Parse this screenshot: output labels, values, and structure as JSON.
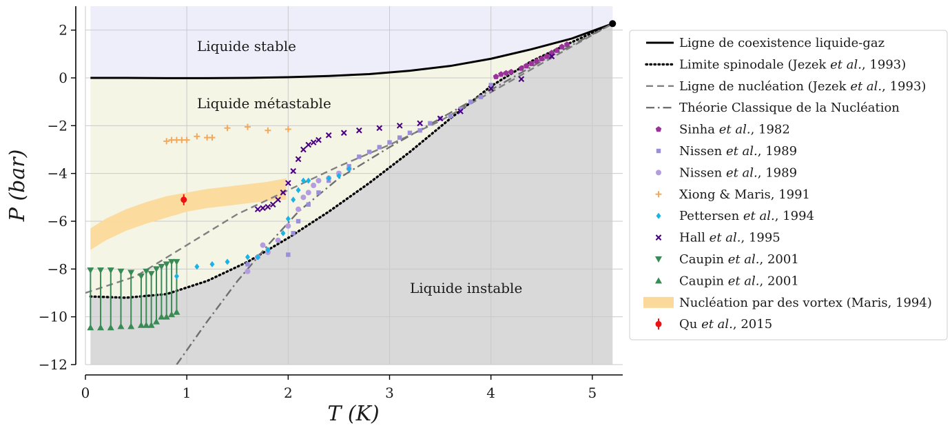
{
  "chart_data": {
    "type": "scatter",
    "xlabel": "T (K)",
    "ylabel": "P (bar)",
    "xlim": [
      0,
      5.3
    ],
    "ylim": [
      -12,
      3
    ],
    "xticks": [
      "0",
      "1",
      "2",
      "3",
      "4",
      "5"
    ],
    "yticks": [
      "2",
      "0",
      "−2",
      "−4",
      "−6",
      "−8",
      "−10",
      "−12"
    ],
    "grid": true,
    "legend_position": "right",
    "region_labels": {
      "stable": "Liquide stable",
      "metastable": "Liquide métastable",
      "unstable": "Liquide instable"
    },
    "colors": {
      "stable_region": "#eeeefa",
      "metastable_region": "#f5f5e6",
      "unstable_region": "#d9d9d9",
      "vortex_band": "#fbd99a"
    },
    "series": [
      {
        "name": "Ligne de coexistence liquide-gaz",
        "kind": "line",
        "color": "#000000",
        "style": "solid",
        "x": [
          0.05,
          0.4,
          0.8,
          1.2,
          1.6,
          2.0,
          2.4,
          2.8,
          3.2,
          3.6,
          4.0,
          4.4,
          4.8,
          5.2
        ],
        "y": [
          0.0,
          0.0,
          -0.01,
          -0.01,
          0.0,
          0.03,
          0.08,
          0.16,
          0.3,
          0.5,
          0.8,
          1.2,
          1.65,
          2.27
        ]
      },
      {
        "name": "Limite spinodale (Jezek et al., 1993)",
        "kind": "line",
        "color": "#000000",
        "style": "dotted",
        "x": [
          0.05,
          0.4,
          0.8,
          1.2,
          1.6,
          2.0,
          2.4,
          2.8,
          3.2,
          3.6,
          4.0,
          4.4,
          4.8,
          5.2
        ],
        "y": [
          -9.15,
          -9.2,
          -9.05,
          -8.5,
          -7.7,
          -6.7,
          -5.6,
          -4.4,
          -3.1,
          -1.7,
          -0.35,
          0.7,
          1.5,
          2.27
        ]
      },
      {
        "name": "Ligne de nucléation (Jezek et al., 1993)",
        "kind": "line",
        "color": "#808080",
        "style": "dashed",
        "x": [
          0.0,
          0.5,
          1.0,
          1.5,
          2.0,
          2.5,
          3.0,
          3.5,
          4.0,
          4.5,
          5.2
        ],
        "y": [
          -9.0,
          -8.3,
          -7.0,
          -5.7,
          -4.7,
          -3.7,
          -2.8,
          -1.8,
          -0.6,
          0.6,
          2.27
        ]
      },
      {
        "name": "Théorie Classique de la Nucléation",
        "kind": "line",
        "color": "#707070",
        "style": "dashdot",
        "x": [
          0.9,
          1.2,
          1.5,
          1.8,
          2.1,
          2.5,
          3.0,
          3.5,
          4.0,
          4.5,
          5.2
        ],
        "y": [
          -12.0,
          -10.2,
          -8.5,
          -7.0,
          -5.6,
          -4.2,
          -2.9,
          -1.7,
          -0.5,
          0.7,
          2.27
        ]
      },
      {
        "name": "Sinha et al., 1982",
        "kind": "scatter",
        "marker": "pentagon",
        "color": "#993399",
        "x": [
          4.05,
          4.1,
          4.15,
          4.2,
          4.3,
          4.35,
          4.4,
          4.45,
          4.5,
          4.55,
          4.6,
          4.65,
          4.7,
          4.75
        ],
        "y": [
          0.05,
          0.15,
          0.2,
          0.25,
          0.4,
          0.5,
          0.6,
          0.7,
          0.8,
          0.9,
          1.05,
          1.15,
          1.3,
          1.4
        ]
      },
      {
        "name": "Nissen et al., 1989",
        "kind": "scatter",
        "marker": "square",
        "color": "#9a8fd8",
        "x": [
          1.6,
          1.8,
          2.0,
          2.05,
          2.1,
          2.2,
          2.3,
          2.4,
          2.5,
          2.6,
          2.7,
          2.8,
          2.9,
          3.0,
          3.1,
          3.2,
          3.3,
          3.4,
          3.5,
          3.6,
          3.7,
          3.8,
          3.9,
          4.0
        ],
        "y": [
          -7.8,
          -7.2,
          -7.4,
          -6.5,
          -6.0,
          -5.3,
          -4.8,
          -4.3,
          -4.0,
          -3.7,
          -3.3,
          -3.1,
          -2.9,
          -2.7,
          -2.5,
          -2.3,
          -2.2,
          -1.9,
          -1.7,
          -1.6,
          -1.3,
          -1.0,
          -0.8,
          -0.3
        ]
      },
      {
        "name": "Nissen et al., 1989",
        "kind": "scatter",
        "marker": "circle",
        "color": "#b39ce0",
        "x": [
          1.6,
          1.7,
          1.75,
          1.8,
          1.9,
          2.0,
          2.1,
          2.15,
          2.2,
          2.25,
          2.3,
          2.4,
          2.5,
          2.6
        ],
        "y": [
          -8.1,
          -7.5,
          -7.0,
          -7.3,
          -6.8,
          -6.2,
          -5.5,
          -5.0,
          -4.8,
          -4.5,
          -4.3,
          -4.2,
          -4.0,
          -3.8
        ]
      },
      {
        "name": "Xiong & Maris, 1991",
        "kind": "scatter",
        "marker": "plus",
        "color": "#f5a85a",
        "x": [
          0.8,
          0.85,
          0.9,
          0.95,
          1.0,
          1.1,
          1.2,
          1.25,
          1.4,
          1.6,
          1.8,
          2.0
        ],
        "y": [
          -2.65,
          -2.6,
          -2.6,
          -2.6,
          -2.6,
          -2.45,
          -2.5,
          -2.5,
          -2.1,
          -2.05,
          -2.2,
          -2.15
        ]
      },
      {
        "name": "Pettersen et al., 1994",
        "kind": "scatter",
        "marker": "diamond",
        "color": "#1ab3e6",
        "x": [
          0.9,
          1.1,
          1.25,
          1.4,
          1.6,
          1.7,
          1.8,
          1.95,
          2.0,
          2.05,
          2.1,
          2.15,
          2.2,
          2.4,
          2.5,
          2.6
        ],
        "y": [
          -8.3,
          -7.9,
          -7.8,
          -7.7,
          -7.5,
          -7.5,
          -7.2,
          -6.5,
          -5.9,
          -5.1,
          -4.7,
          -4.3,
          -4.3,
          -4.2,
          -4.1,
          -3.8
        ]
      },
      {
        "name": "Hall et al., 1995",
        "kind": "scatter",
        "marker": "x",
        "color": "#4b0082",
        "x": [
          1.7,
          1.75,
          1.8,
          1.85,
          1.9,
          1.95,
          2.0,
          2.05,
          2.1,
          2.15,
          2.2,
          2.25,
          2.3,
          2.4,
          2.55,
          2.7,
          2.9,
          3.1,
          3.3,
          3.5,
          3.7,
          4.0,
          4.3,
          4.6
        ],
        "y": [
          -5.5,
          -5.45,
          -5.4,
          -5.3,
          -5.1,
          -4.8,
          -4.4,
          -3.9,
          -3.4,
          -3.0,
          -2.8,
          -2.7,
          -2.6,
          -2.4,
          -2.3,
          -2.2,
          -2.1,
          -2.0,
          -1.9,
          -1.7,
          -1.4,
          -0.45,
          -0.05,
          0.9
        ]
      },
      {
        "name": "Caupin et al., 2001",
        "kind": "scatter",
        "marker": "triangle-down",
        "color": "#3a8a55",
        "x": [
          0.05,
          0.15,
          0.25,
          0.35,
          0.45,
          0.55,
          0.6,
          0.65,
          0.7,
          0.75,
          0.8,
          0.85,
          0.9
        ],
        "y": [
          -8.05,
          -8.05,
          -8.05,
          -8.1,
          -8.15,
          -8.3,
          -8.1,
          -8.2,
          -8.0,
          -7.9,
          -7.8,
          -7.7,
          -7.7
        ]
      },
      {
        "name": "Caupin et al., 2001",
        "kind": "scatter",
        "marker": "triangle-up",
        "color": "#3a8a55",
        "x": [
          0.05,
          0.15,
          0.25,
          0.35,
          0.45,
          0.55,
          0.6,
          0.65,
          0.7,
          0.75,
          0.8,
          0.85,
          0.9
        ],
        "y": [
          -10.45,
          -10.45,
          -10.45,
          -10.4,
          -10.4,
          -10.35,
          -10.35,
          -10.35,
          -10.2,
          -10.0,
          -10.0,
          -9.9,
          -9.8
        ]
      },
      {
        "name": "Nucléation par des vortex (Maris, 1994)",
        "kind": "band",
        "color": "#fbd99a",
        "x": [
          0.05,
          0.2,
          0.4,
          0.6,
          0.8,
          1.0,
          1.2,
          1.4,
          1.6,
          1.8,
          1.98
        ],
        "y_upper": [
          -6.3,
          -5.9,
          -5.5,
          -5.2,
          -4.95,
          -4.8,
          -4.65,
          -4.55,
          -4.45,
          -4.35,
          -4.2
        ],
        "y_lower": [
          -7.2,
          -6.8,
          -6.4,
          -6.1,
          -5.85,
          -5.6,
          -5.45,
          -5.35,
          -5.25,
          -5.15,
          -5.1
        ]
      },
      {
        "name": "Qu et al., 2015",
        "kind": "scatter",
        "marker": "errorbar-dot",
        "color": "#ee1111",
        "x": [
          0.97
        ],
        "y": [
          -5.1
        ]
      }
    ],
    "critical_point": {
      "x": 5.2,
      "y": 2.27
    }
  },
  "legend": {
    "entries": [
      {
        "text": "Ligne de coexistence liquide-gaz",
        "plain": "Ligne de coexistence liquide-gaz",
        "italic": "",
        "tail": ""
      },
      {
        "text": "Limite spinodale (Jezek et al., 1993)",
        "plain": "Limite spinodale (Jezek ",
        "italic": "et al.",
        "tail": ", 1993)"
      },
      {
        "text": "Ligne de nucléation (Jezek et al., 1993)",
        "plain": "Ligne de nucléation (Jezek ",
        "italic": "et al.",
        "tail": ", 1993)"
      },
      {
        "text": "Théorie Classique de la Nucléation",
        "plain": "Théorie Classique de la Nucléation",
        "italic": "",
        "tail": ""
      },
      {
        "text": "Sinha et al., 1982",
        "plain": "Sinha ",
        "italic": "et al.",
        "tail": ", 1982"
      },
      {
        "text": "Nissen et al., 1989",
        "plain": "Nissen ",
        "italic": "et al.",
        "tail": ", 1989"
      },
      {
        "text": "Nissen et al., 1989",
        "plain": "Nissen ",
        "italic": "et al.",
        "tail": ", 1989"
      },
      {
        "text": "Xiong & Maris, 1991",
        "plain": "Xiong & Maris, 1991",
        "italic": "",
        "tail": ""
      },
      {
        "text": "Pettersen et al., 1994",
        "plain": "Pettersen ",
        "italic": "et al.",
        "tail": ", 1994"
      },
      {
        "text": "Hall et al., 1995",
        "plain": "Hall ",
        "italic": "et al.",
        "tail": ", 1995"
      },
      {
        "text": "Caupin et al., 2001",
        "plain": "Caupin ",
        "italic": "et al.",
        "tail": ", 2001"
      },
      {
        "text": "Caupin et al., 2001",
        "plain": "Caupin ",
        "italic": "et al.",
        "tail": ", 2001"
      },
      {
        "text": "Nucléation par des vortex (Maris, 1994)",
        "plain": "Nucléation par des vortex (Maris, 1994)",
        "italic": "",
        "tail": ""
      },
      {
        "text": "Qu et al., 2015",
        "plain": "Qu ",
        "italic": "et al.",
        "tail": ", 2015"
      }
    ]
  }
}
